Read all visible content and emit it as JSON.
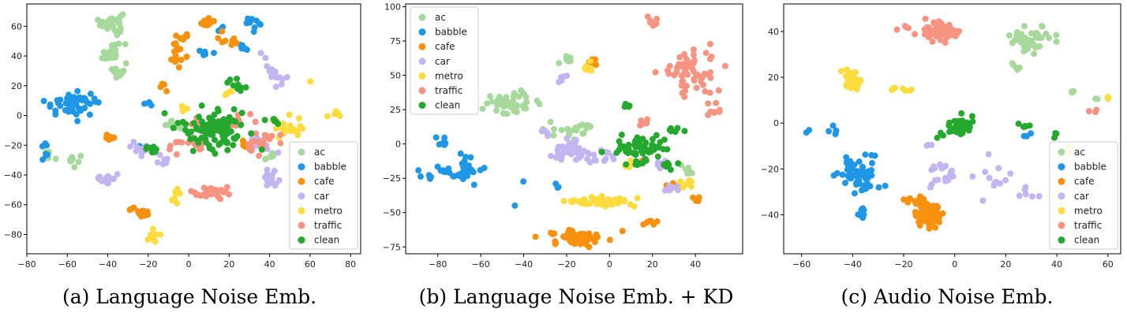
{
  "captions": [
    "(a) Language Noise Emb.",
    "(b) Language Noise Emb. + KD",
    "(c) Audio Noise Emb."
  ],
  "colors": {
    "ac": "#a6d99b",
    "babble": "#1f97e6",
    "cafe": "#f7910e",
    "car": "#c3b6f0",
    "metro": "#fddc3d",
    "traffic": "#f79481",
    "clean": "#24a82e"
  },
  "chart_data": [
    {
      "type": "scatter",
      "xlim": [
        -80,
        85
      ],
      "ylim": [
        -93,
        75
      ],
      "xticks": [
        -80,
        -60,
        -40,
        -20,
        0,
        20,
        40,
        60,
        80
      ],
      "yticks": [
        -80,
        -60,
        -40,
        -20,
        0,
        20,
        40,
        60
      ],
      "legend": "bottom-right",
      "series": [
        {
          "name": "ac",
          "clusters": [
            [
              -38,
              62,
              5,
              7,
              28
            ],
            [
              -37,
              42,
              6,
              8,
              26
            ],
            [
              -36,
              29,
              3,
              3,
              10
            ],
            [
              -58,
              -30,
              4,
              4,
              10
            ],
            [
              -70,
              -25,
              1,
              5,
              5
            ],
            [
              -8,
              -5,
              3,
              4,
              8
            ],
            [
              40,
              -28,
              3,
              3,
              6
            ]
          ]
        },
        {
          "name": "babble",
          "clusters": [
            [
              -58,
              8,
              12,
              7,
              55
            ],
            [
              -71,
              -25,
              2,
              5,
              8
            ],
            [
              -20,
              8,
              2,
              2,
              4
            ],
            [
              8,
              42,
              5,
              2,
              6
            ],
            [
              32,
              62,
              3,
              4,
              10
            ],
            [
              28,
              48,
              4,
              3,
              6
            ],
            [
              17,
              57,
              2,
              2,
              3
            ],
            [
              -25,
              -22,
              2,
              3,
              4
            ]
          ]
        },
        {
          "name": "cafe",
          "clusters": [
            [
              -38,
              -15,
              4,
              2,
              9
            ],
            [
              -22,
              -67,
              3,
              3,
              8
            ],
            [
              -5,
              45,
              6,
              10,
              22
            ],
            [
              10,
              62,
              4,
              3,
              10
            ],
            [
              18,
              50,
              5,
              4,
              8
            ],
            [
              -13,
              19,
              2,
              3,
              5
            ],
            [
              28,
              -20,
              3,
              3,
              6
            ],
            [
              -28,
              -62,
              2,
              2,
              3
            ]
          ]
        },
        {
          "name": "car",
          "clusters": [
            [
              -40,
              -43,
              5,
              3,
              14
            ],
            [
              -23,
              -22,
              5,
              6,
              16
            ],
            [
              42,
              -42,
              5,
              6,
              16
            ],
            [
              42,
              30,
              6,
              8,
              18
            ],
            [
              36,
              -20,
              5,
              5,
              8
            ],
            [
              -12,
              -30,
              4,
              4,
              6
            ]
          ]
        },
        {
          "name": "metro",
          "clusters": [
            [
              -17,
              -80,
              2,
              5,
              10
            ],
            [
              -6,
              -55,
              2,
              5,
              8
            ],
            [
              48,
              -8,
              7,
              7,
              25
            ],
            [
              72,
              0,
              4,
              2,
              6
            ],
            [
              60,
              22,
              1,
              2,
              2
            ],
            [
              -2,
              4,
              2,
              2,
              4
            ],
            [
              20,
              14,
              3,
              3,
              5
            ]
          ]
        },
        {
          "name": "traffic",
          "clusters": [
            [
              12,
              -52,
              10,
              4,
              26
            ],
            [
              0,
              -20,
              10,
              5,
              15
            ],
            [
              35,
              -18,
              7,
              8,
              20
            ],
            [
              22,
              -5,
              8,
              8,
              14
            ],
            [
              4,
              -5,
              4,
              4,
              8
            ]
          ]
        },
        {
          "name": "clean",
          "clusters": [
            [
              12,
              -8,
              15,
              13,
              95
            ],
            [
              -18,
              -23,
              3,
              3,
              8
            ],
            [
              25,
              20,
              5,
              4,
              10
            ],
            [
              42,
              -3,
              4,
              4,
              6
            ]
          ]
        }
      ]
    },
    {
      "type": "scatter",
      "xlim": [
        -95,
        62
      ],
      "ylim": [
        -80,
        102
      ],
      "xticks": [
        -80,
        -60,
        -40,
        -20,
        0,
        20,
        40
      ],
      "yticks": [
        -75,
        -50,
        -25,
        0,
        25,
        50,
        75,
        100
      ],
      "legend": "top-left",
      "series": [
        {
          "name": "ac",
          "clusters": [
            [
              -45,
              30,
              12,
              7,
              40
            ],
            [
              -20,
              62,
              3,
              3,
              8
            ],
            [
              -15,
              10,
              12,
              5,
              20
            ],
            [
              35,
              -20,
              4,
              4,
              8
            ]
          ]
        },
        {
          "name": "babble",
          "clusters": [
            [
              -72,
              -20,
              13,
              5,
              40
            ],
            [
              -78,
              0,
              3,
              5,
              6
            ],
            [
              -65,
              -10,
              3,
              3,
              4
            ],
            [
              -45,
              -45,
              1,
              1,
              1
            ],
            [
              -40,
              -28,
              1,
              1,
              1
            ],
            [
              -25,
              -30,
              2,
              2,
              3
            ]
          ]
        },
        {
          "name": "cafe",
          "clusters": [
            [
              -14,
              -68,
              12,
              5,
              55
            ],
            [
              -8,
              59,
              3,
              3,
              6
            ],
            [
              20,
              -57,
              4,
              2,
              6
            ],
            [
              40,
              -40,
              3,
              3,
              5
            ],
            [
              28,
              -30,
              3,
              3,
              4
            ],
            [
              15,
              -12,
              2,
              2,
              3
            ]
          ]
        },
        {
          "name": "car",
          "clusters": [
            [
              -20,
              -5,
              10,
              8,
              40
            ],
            [
              -5,
              -10,
              6,
              5,
              12
            ],
            [
              -22,
              47,
              2,
              3,
              5
            ],
            [
              25,
              -15,
              5,
              5,
              8
            ],
            [
              30,
              -32,
              4,
              4,
              6
            ],
            [
              -30,
              8,
              3,
              3,
              5
            ]
          ]
        },
        {
          "name": "metro",
          "clusters": [
            [
              -5,
              -42,
              15,
              3,
              45
            ],
            [
              -10,
              55,
              3,
              3,
              7
            ],
            [
              35,
              -30,
              4,
              4,
              6
            ],
            [
              8,
              -15,
              3,
              3,
              4
            ]
          ]
        },
        {
          "name": "traffic",
          "clusters": [
            [
              38,
              52,
              12,
              15,
              60
            ],
            [
              20,
              90,
              3,
              3,
              8
            ],
            [
              50,
              25,
              5,
              5,
              8
            ],
            [
              15,
              15,
              3,
              3,
              5
            ]
          ]
        },
        {
          "name": "clean",
          "clusters": [
            [
              15,
              -3,
              12,
              8,
              55
            ],
            [
              8,
              28,
              2,
              2,
              5
            ],
            [
              30,
              10,
              3,
              3,
              6
            ],
            [
              28,
              -15,
              4,
              4,
              8
            ],
            [
              12,
              -15,
              5,
              3,
              6
            ]
          ]
        }
      ]
    },
    {
      "type": "scatter",
      "xlim": [
        -67,
        65
      ],
      "ylim": [
        -57,
        52
      ],
      "xticks": [
        -60,
        -40,
        -20,
        0,
        20,
        40,
        60
      ],
      "yticks": [
        -40,
        -20,
        0,
        20,
        40
      ],
      "legend": "bottom-right",
      "series": [
        {
          "name": "ac",
          "clusters": [
            [
              30,
              37,
              8,
              5,
              45
            ],
            [
              24,
              25,
              2,
              2,
              5
            ],
            [
              46,
              14,
              1,
              1,
              3
            ],
            [
              56,
              10,
              1,
              1,
              2
            ]
          ]
        },
        {
          "name": "babble",
          "clusters": [
            [
              -37,
              -23,
              7,
              8,
              60
            ],
            [
              -47,
              -3,
              2,
              2,
              5
            ],
            [
              -37,
              -40,
              3,
              2,
              7
            ],
            [
              -58,
              -3,
              1,
              1,
              2
            ],
            [
              28,
              -5,
              3,
              1,
              3
            ]
          ]
        },
        {
          "name": "cafe",
          "clusters": [
            [
              -10,
              -40,
              5,
              5,
              80
            ],
            [
              -15,
              -33,
              4,
              2,
              10
            ]
          ]
        },
        {
          "name": "car",
          "clusters": [
            [
              -5,
              -23,
              6,
              6,
              18
            ],
            [
              15,
              -25,
              6,
              6,
              12
            ],
            [
              30,
              -30,
              4,
              3,
              6
            ],
            [
              -10,
              -10,
              2,
              2,
              3
            ]
          ]
        },
        {
          "name": "metro",
          "clusters": [
            [
              -40,
              19,
              3,
              5,
              35
            ],
            [
              -20,
              15,
              4,
              1,
              8
            ],
            [
              60,
              11,
              1,
              1,
              3
            ],
            [
              45,
              -12,
              2,
              2,
              3
            ]
          ]
        },
        {
          "name": "traffic",
          "clusters": [
            [
              -6,
              40,
              8,
              4,
              50
            ],
            [
              55,
              5,
              2,
              1,
              3
            ],
            [
              -20,
              42,
              2,
              2,
              4
            ]
          ]
        },
        {
          "name": "clean",
          "clusters": [
            [
              2,
              -1,
              5,
              3,
              40
            ],
            [
              28,
              -1,
              2,
              2,
              6
            ],
            [
              40,
              -5,
              2,
              1,
              3
            ],
            [
              -5,
              -5,
              2,
              2,
              3
            ]
          ]
        }
      ]
    }
  ]
}
